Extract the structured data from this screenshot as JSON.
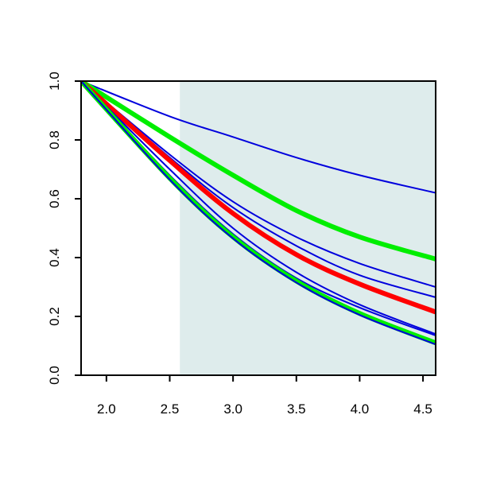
{
  "chart_data": {
    "type": "line",
    "title": "",
    "xlabel": "",
    "ylabel": "",
    "xlim": [
      1.8,
      4.6
    ],
    "ylim": [
      0.0,
      1.0
    ],
    "x_ticks": [
      2.0,
      2.5,
      3.0,
      3.5,
      4.0,
      4.5
    ],
    "x_tick_labels": [
      "2.0",
      "2.5",
      "3.0",
      "3.5",
      "4.0",
      "4.5"
    ],
    "y_ticks": [
      0.0,
      0.2,
      0.4,
      0.6,
      0.8,
      1.0
    ],
    "y_tick_labels": [
      "0.0",
      "0.2",
      "0.4",
      "0.6",
      "0.8",
      "1.0"
    ],
    "grid": false,
    "legend": "none",
    "shaded_region": {
      "x_from": 2.58,
      "x_to": 4.6,
      "color": "#deecec"
    },
    "series": [
      {
        "color": "#0000dd",
        "width": "thin",
        "x": [
          1.8,
          2.5,
          3.0,
          3.5,
          4.0,
          4.6
        ],
        "y": [
          1.0,
          0.88,
          0.81,
          0.74,
          0.68,
          0.62
        ]
      },
      {
        "color": "#00ee00",
        "width": "thick",
        "x": [
          1.8,
          2.5,
          3.0,
          3.5,
          4.0,
          4.6
        ],
        "y": [
          1.0,
          0.81,
          0.68,
          0.56,
          0.47,
          0.395
        ]
      },
      {
        "color": "#0000dd",
        "width": "thin",
        "x": [
          1.8,
          2.5,
          3.0,
          3.5,
          4.0,
          4.6
        ],
        "y": [
          1.0,
          0.75,
          0.59,
          0.47,
          0.38,
          0.3
        ]
      },
      {
        "color": "#0000dd",
        "width": "thin",
        "x": [
          1.8,
          2.5,
          3.0,
          3.5,
          4.0,
          4.6
        ],
        "y": [
          1.0,
          0.74,
          0.57,
          0.44,
          0.34,
          0.265
        ]
      },
      {
        "color": "#ff0000",
        "width": "thick",
        "x": [
          1.8,
          2.5,
          3.0,
          3.5,
          4.0,
          4.6
        ],
        "y": [
          1.0,
          0.73,
          0.55,
          0.41,
          0.31,
          0.215
        ]
      },
      {
        "color": "#0000dd",
        "width": "thin",
        "x": [
          1.8,
          2.5,
          3.0,
          3.5,
          4.0,
          4.6
        ],
        "y": [
          1.0,
          0.7,
          0.5,
          0.35,
          0.24,
          0.14
        ]
      },
      {
        "color": "#0000dd",
        "width": "thin",
        "x": [
          1.8,
          2.5,
          3.0,
          3.5,
          4.0,
          4.6
        ],
        "y": [
          1.0,
          0.68,
          0.48,
          0.33,
          0.23,
          0.135
        ]
      },
      {
        "color": "#00ee00",
        "width": "thick",
        "x": [
          1.8,
          2.5,
          3.0,
          3.5,
          4.0,
          4.6
        ],
        "y": [
          1.0,
          0.67,
          0.47,
          0.32,
          0.21,
          0.11
        ]
      },
      {
        "color": "#0000dd",
        "width": "thin",
        "x": [
          1.8,
          2.5,
          3.0,
          3.5,
          4.0,
          4.6
        ],
        "y": [
          1.0,
          0.665,
          0.465,
          0.315,
          0.205,
          0.105
        ]
      }
    ]
  }
}
